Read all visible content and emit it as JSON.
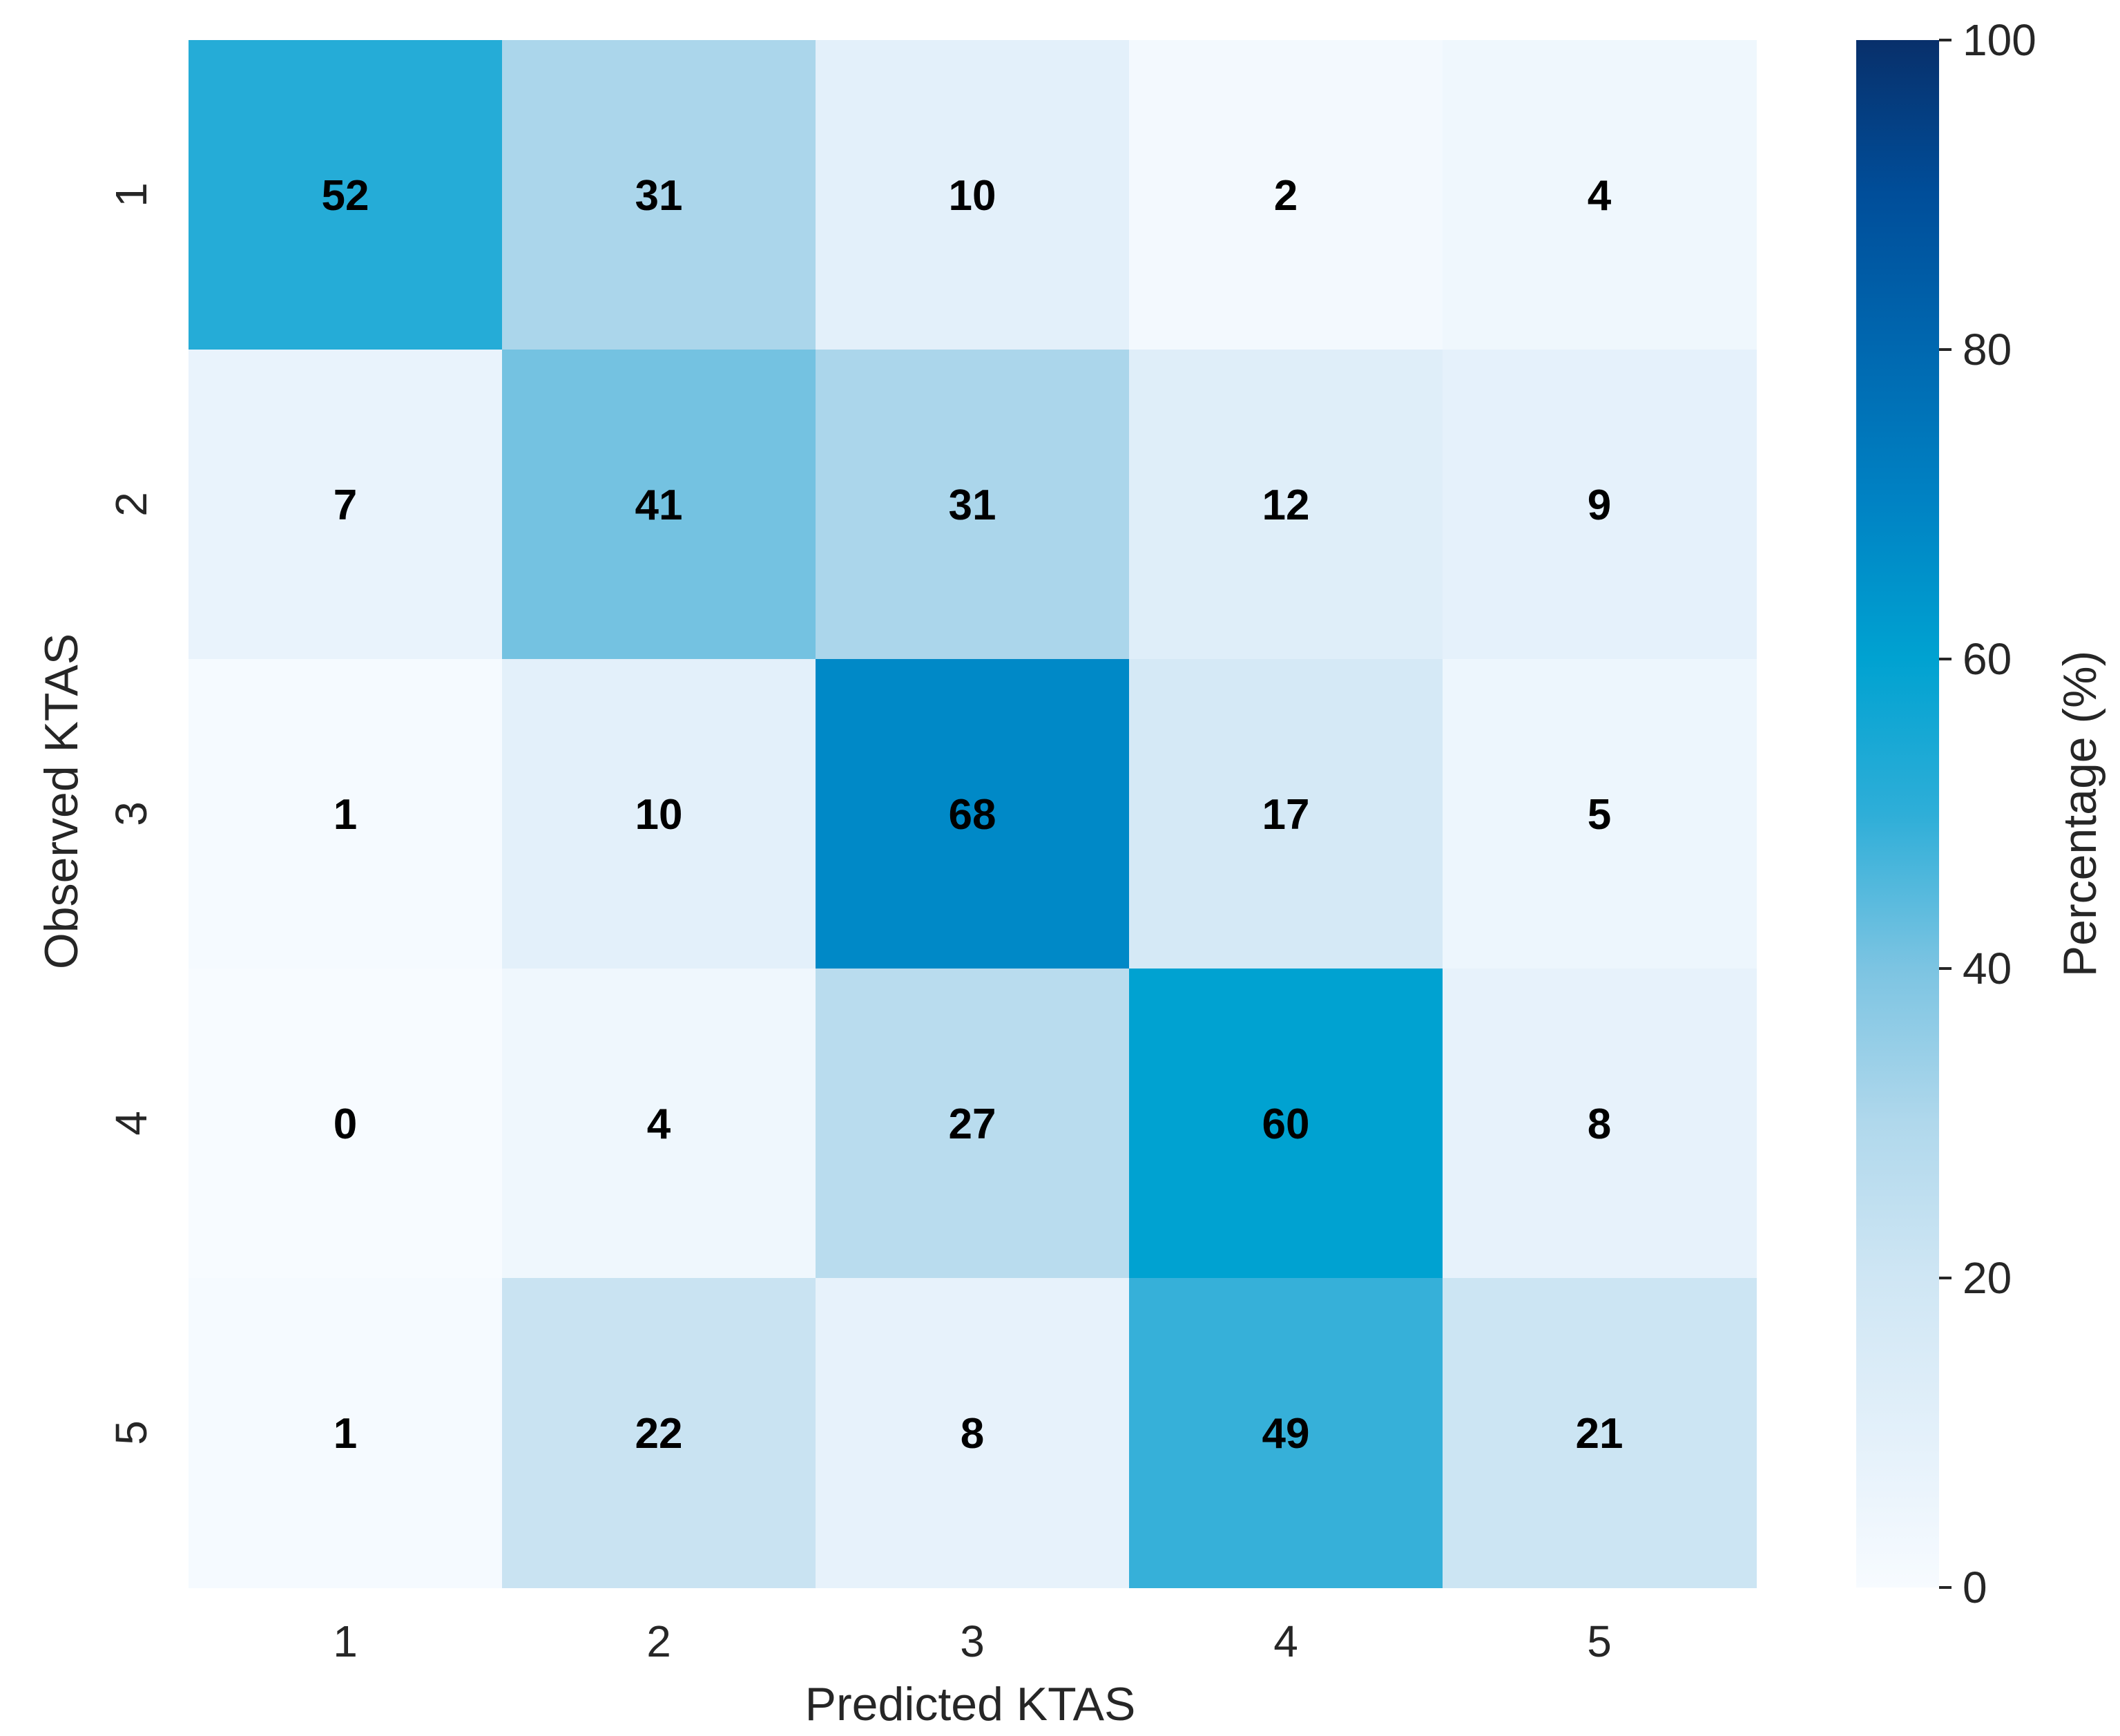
{
  "chart_data": {
    "type": "heatmap",
    "title": "",
    "xlabel": "Predicted KTAS",
    "ylabel": "Observed KTAS",
    "x_categories": [
      "1",
      "2",
      "3",
      "4",
      "5"
    ],
    "y_categories": [
      "1",
      "2",
      "3",
      "4",
      "5"
    ],
    "values": [
      [
        52,
        31,
        10,
        2,
        4
      ],
      [
        7,
        41,
        31,
        12,
        9
      ],
      [
        1,
        10,
        68,
        17,
        5
      ],
      [
        0,
        4,
        27,
        60,
        8
      ],
      [
        1,
        22,
        8,
        49,
        21
      ]
    ],
    "colorbar": {
      "label": "Percentage (%)",
      "range": [
        0,
        100
      ],
      "ticks": [
        "0",
        "20",
        "40",
        "60",
        "80",
        "100"
      ],
      "colormap_stops": [
        {
          "value": 0,
          "color": "#f7fbff"
        },
        {
          "value": 10,
          "color": "#e3f0fa"
        },
        {
          "value": 20,
          "color": "#cfe6f4"
        },
        {
          "value": 30,
          "color": "#b0d8ec"
        },
        {
          "value": 40,
          "color": "#7cc4e2"
        },
        {
          "value": 50,
          "color": "#2eaed8"
        },
        {
          "value": 60,
          "color": "#00a2d1"
        },
        {
          "value": 70,
          "color": "#0083c4"
        },
        {
          "value": 80,
          "color": "#0068b0"
        },
        {
          "value": 90,
          "color": "#004e9a"
        },
        {
          "value": 100,
          "color": "#08306b"
        }
      ]
    }
  }
}
